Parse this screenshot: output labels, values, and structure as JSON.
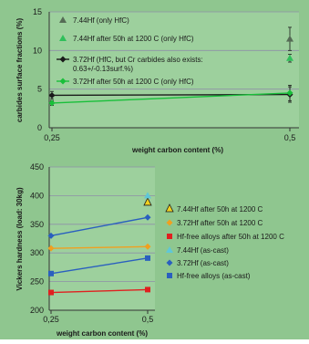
{
  "colors": {
    "background": "#8fc68f",
    "plot_area": "#9dd09d",
    "grid": "#8f8fa8",
    "axis": "#333333",
    "c744": "#556b55",
    "c744_50h": "#2fbf5a",
    "c372_50h": "#1a1a1a",
    "c372": "#19bf3a",
    "t1_744_50h": "#1a1a1a",
    "t1_372_50h": "#f0a020",
    "t1_hffree_50h": "#e02020",
    "t1_744": "#5fc7d8",
    "t1_372": "#2a5fbf",
    "t1_hffree": "#2a5fbf"
  },
  "chart_data": [
    {
      "type": "scatter",
      "xlabel": "weight carbon content (%)",
      "ylabel": "carbides surface fractions (%)",
      "xlim": [
        0.25,
        0.5
      ],
      "ylim": [
        0,
        15
      ],
      "y_ticks": [
        "0",
        "5",
        "10",
        "15"
      ],
      "x_ticks": [
        "0,25",
        "0,5"
      ],
      "grid": true,
      "legend_position": "inside-top",
      "series": [
        {
          "name": "7.44Hf (only HfC)",
          "marker": "triangle",
          "line": false,
          "points": [
            [
              0.5,
              11.5
            ]
          ],
          "errors": [
            1.5
          ]
        },
        {
          "name": "7.44Hf after 50h at 1200 C (only HfC)",
          "marker": "triangle",
          "line": false,
          "points": [
            [
              0.5,
              9.0
            ]
          ],
          "errors": [
            0.5
          ]
        },
        {
          "name": "3.72Hf (HfC, but Cr carbides also exists: 0.63+/-0.13surf.%)",
          "marker": "diamond",
          "line": true,
          "points": [
            [
              0.25,
              4.2
            ],
            [
              0.5,
              4.3
            ]
          ],
          "errors": [
            0.5,
            1.0
          ]
        },
        {
          "name": "3.72Hf after 50h at 1200 C (only HfC)",
          "marker": "diamond",
          "line": true,
          "points": [
            [
              0.25,
              3.2
            ],
            [
              0.5,
              4.5
            ]
          ],
          "errors": [
            0.3,
            1.0
          ]
        }
      ]
    },
    {
      "type": "scatter",
      "xlabel": "weight carbon content (%)",
      "ylabel": "Vickers hardness (load: 30kg)",
      "xlim": [
        0.25,
        0.5
      ],
      "ylim": [
        200,
        450
      ],
      "y_ticks": [
        "200",
        "250",
        "300",
        "350",
        "400",
        "450"
      ],
      "x_ticks": [
        "0,25",
        "0,5"
      ],
      "grid": true,
      "legend_position": "right",
      "series": [
        {
          "name": "7.44Hf after 50h at 1200 C",
          "marker": "arrow-triangle",
          "line": false,
          "points": [
            [
              0.5,
              388
            ]
          ]
        },
        {
          "name": "3.72Hf after 50h at 1200 C",
          "marker": "diamond",
          "line": true,
          "points": [
            [
              0.25,
              308
            ],
            [
              0.5,
              311
            ]
          ]
        },
        {
          "name": "Hf-free alloys after 50h at 1200 C",
          "marker": "square",
          "line": true,
          "points": [
            [
              0.25,
              231
            ],
            [
              0.5,
              236
            ]
          ]
        },
        {
          "name": "7.44Hf (as-cast)",
          "marker": "triangle",
          "line": false,
          "points": [
            [
              0.5,
              400
            ]
          ]
        },
        {
          "name": "3.72Hf (as-cast)",
          "marker": "diamond",
          "line": true,
          "points": [
            [
              0.25,
              330
            ],
            [
              0.5,
              362
            ]
          ]
        },
        {
          "name": "Hf-free alloys (as-cast)",
          "marker": "square",
          "line": true,
          "points": [
            [
              0.25,
              264
            ],
            [
              0.5,
              291
            ]
          ]
        }
      ]
    }
  ]
}
